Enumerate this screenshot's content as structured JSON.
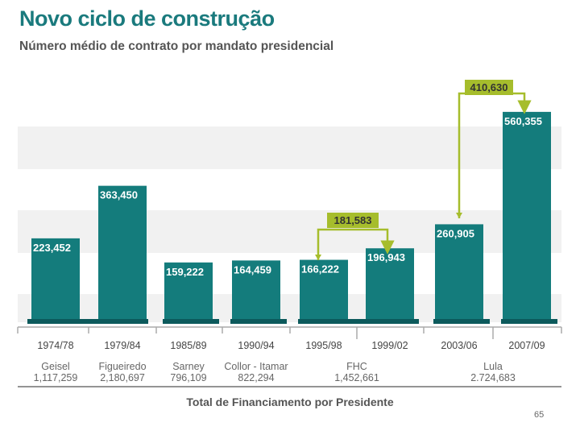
{
  "title": "Novo ciclo de construção",
  "subtitle": "Número médio de contrato por mandato presidencial",
  "footer": "Total de Financiamento por Presidente",
  "page_number": "65",
  "colors": {
    "bar": "#147c7c",
    "bar_dark": "#0c5a5c",
    "accent": "#a6bd2c",
    "title": "#1a7a7d",
    "band": "#f1f1f1"
  },
  "chart_data": {
    "type": "bar",
    "title": "Número médio de contrato por mandato presidencial",
    "xlabel": "Total de Financiamento por Presidente",
    "ylabel": "",
    "ylim": [
      0,
      600000
    ],
    "categories": [
      "1974/78",
      "1979/84",
      "1985/89",
      "1990/94",
      "1995/98",
      "1999/02",
      "2003/06",
      "2007/09"
    ],
    "values": [
      223452,
      363450,
      159222,
      164459,
      166222,
      196943,
      260905,
      560355
    ],
    "value_labels": [
      "223,452",
      "363,450",
      "159,222",
      "164,459",
      "166,222",
      "196,943",
      "260,905",
      "560,355"
    ],
    "presidents": [
      {
        "name": "Geisel",
        "financing": "1,117,259"
      },
      {
        "name": "Figueiredo",
        "financing": "2,180,697"
      },
      {
        "name": "Sarney",
        "financing": "796,109"
      },
      {
        "name": "Collor - Itamar",
        "financing": "822,294"
      },
      {
        "name": "FHC",
        "financing": "1,452,661"
      },
      {
        "name": "Lula",
        "financing": "2.724,683"
      }
    ],
    "growth_annotations": [
      {
        "label": "181,583",
        "from": "1995/98",
        "to": "1999/02"
      },
      {
        "label": "410,630",
        "from": "2003/06",
        "to": "2007/09"
      }
    ]
  }
}
